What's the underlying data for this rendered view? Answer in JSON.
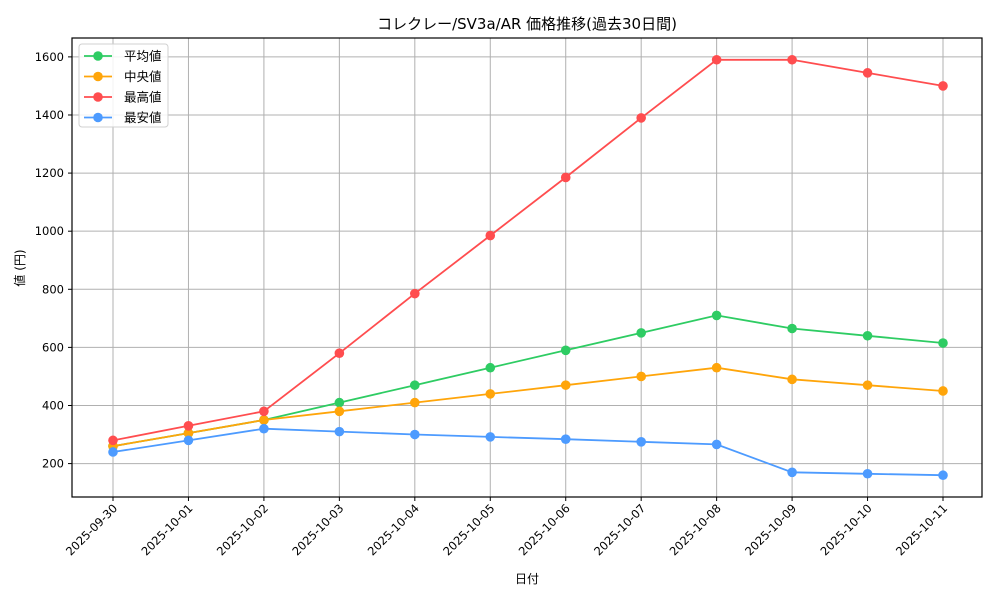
{
  "chart_data": {
    "type": "line",
    "title": "コレクレー/SV3a/AR 価格推移(過去30日間)",
    "xlabel": "日付",
    "ylabel": "値 (円)",
    "x": [
      "2025-09-30",
      "2025-10-01",
      "2025-10-02",
      "2025-10-03",
      "2025-10-04",
      "2025-10-05",
      "2025-10-06",
      "2025-10-07",
      "2025-10-08",
      "2025-10-09",
      "2025-10-10",
      "2025-10-11"
    ],
    "yticks": [
      200,
      400,
      600,
      800,
      1000,
      1200,
      1400,
      1600
    ],
    "ylim": [
      85,
      1665
    ],
    "grid": true,
    "legend_position": "upper left",
    "series": [
      {
        "name": "平均値",
        "color": "#2ecc63",
        "values": [
          260,
          305,
          350,
          410,
          470,
          530,
          590,
          650,
          710,
          665,
          640,
          615
        ]
      },
      {
        "name": "中央値",
        "color": "#ffa50a",
        "values": [
          260,
          305,
          350,
          380,
          410,
          440,
          470,
          500,
          530,
          490,
          470,
          450
        ]
      },
      {
        "name": "最高値",
        "color": "#ff4d4f",
        "values": [
          280,
          330,
          380,
          580,
          785,
          985,
          1185,
          1390,
          1590,
          1590,
          1545,
          1500
        ]
      },
      {
        "name": "最安値",
        "color": "#4d9bff",
        "values": [
          240,
          280,
          320,
          310,
          300,
          292,
          284,
          275,
          266,
          170,
          165,
          160
        ]
      }
    ]
  }
}
